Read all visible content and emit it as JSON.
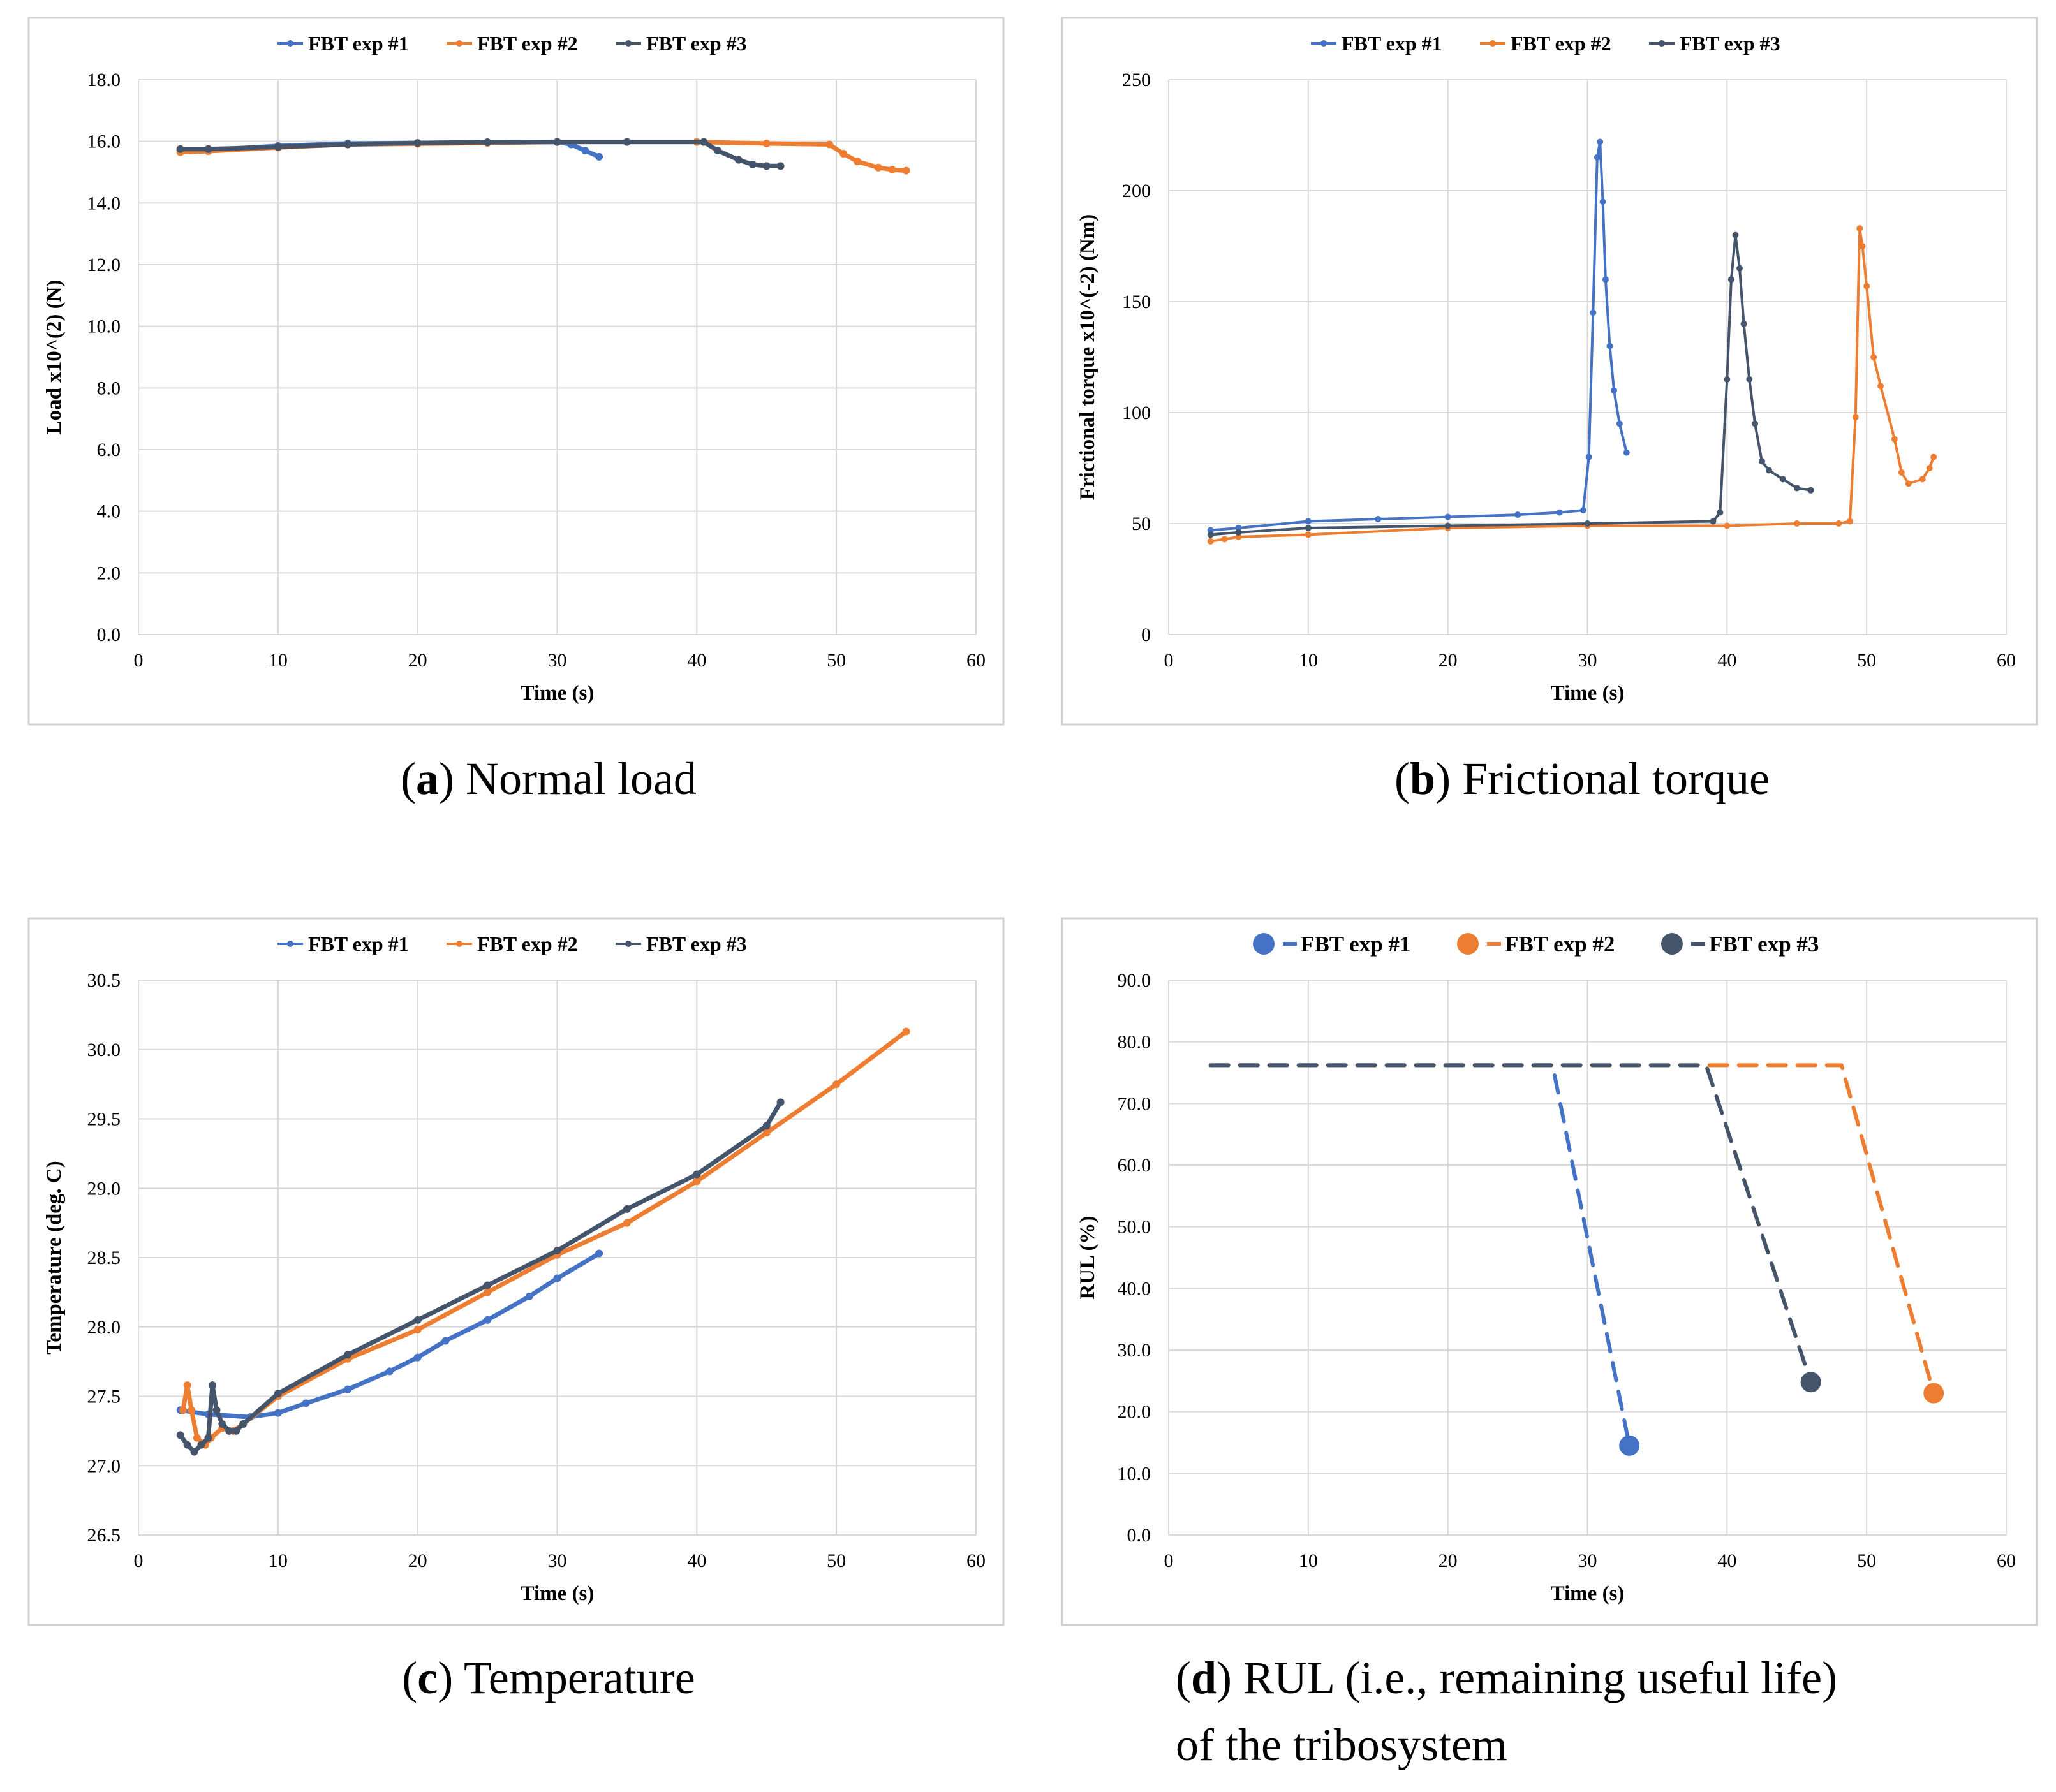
{
  "colors": {
    "exp1": "#4472C4",
    "exp2": "#ED7D31",
    "exp3": "#44546A"
  },
  "legend": [
    "FBT exp #1",
    "FBT exp #2",
    "FBT exp #3"
  ],
  "captions": {
    "a": {
      "letter": "a",
      "text": "Normal load"
    },
    "b": {
      "letter": "b",
      "text": "Frictional torque"
    },
    "c": {
      "letter": "c",
      "text": "Temperature"
    },
    "d": {
      "letter": "d",
      "text": "RUL (i.e., remaining useful life)",
      "text2": "of the tribosystem"
    }
  },
  "chart_data": [
    {
      "id": "a",
      "type": "line",
      "xlabel": "Time (s)",
      "ylabel": "Load x10^(2) (N)",
      "xlim": [
        0,
        60
      ],
      "ylim": [
        0,
        18
      ],
      "xticks": [
        "0",
        "10",
        "20",
        "30",
        "40",
        "50",
        "60"
      ],
      "yticks": [
        "0.0",
        "2.0",
        "4.0",
        "6.0",
        "8.0",
        "10.0",
        "12.0",
        "14.0",
        "16.0",
        "18.0"
      ],
      "grid": true,
      "legend_position": "top",
      "series": [
        {
          "name": "FBT exp #1",
          "x": [
            3,
            5,
            10,
            15,
            20,
            25,
            30,
            31,
            32,
            33
          ],
          "y": [
            15.7,
            15.72,
            15.85,
            15.93,
            15.95,
            15.97,
            15.98,
            15.9,
            15.7,
            15.5
          ]
        },
        {
          "name": "FBT exp #2",
          "x": [
            3,
            5,
            10,
            15,
            20,
            25,
            30,
            35,
            40,
            45,
            49.5,
            50.5,
            51.5,
            53,
            54,
            55
          ],
          "y": [
            15.65,
            15.68,
            15.8,
            15.9,
            15.92,
            15.95,
            15.98,
            15.98,
            15.98,
            15.93,
            15.9,
            15.6,
            15.35,
            15.15,
            15.08,
            15.05
          ]
        },
        {
          "name": "FBT exp #3",
          "x": [
            3,
            5,
            10,
            15,
            20,
            25,
            30,
            35,
            40.5,
            41.5,
            43,
            44,
            45,
            46
          ],
          "y": [
            15.75,
            15.75,
            15.82,
            15.9,
            15.95,
            15.97,
            15.98,
            15.98,
            15.98,
            15.7,
            15.4,
            15.25,
            15.2,
            15.2
          ]
        }
      ]
    },
    {
      "id": "b",
      "type": "line",
      "xlabel": "Time (s)",
      "ylabel": "Frictional torque x10^(-2) (Nm)",
      "xlim": [
        0,
        60
      ],
      "ylim": [
        0,
        250
      ],
      "xticks": [
        "0",
        "10",
        "20",
        "30",
        "40",
        "50",
        "60"
      ],
      "yticks": [
        "0",
        "50",
        "100",
        "150",
        "200",
        "250"
      ],
      "grid": true,
      "legend_position": "top",
      "series": [
        {
          "name": "FBT exp #1",
          "x": [
            3,
            5,
            10,
            15,
            20,
            25,
            28,
            29.7,
            30.1,
            30.4,
            30.7,
            30.9,
            31.1,
            31.3,
            31.6,
            31.9,
            32.3,
            32.8
          ],
          "y": [
            47,
            48,
            51,
            52,
            53,
            54,
            55,
            56,
            80,
            145,
            215,
            222,
            195,
            160,
            130,
            110,
            95,
            82
          ]
        },
        {
          "name": "FBT exp #2",
          "x": [
            3,
            4,
            5,
            10,
            20,
            30,
            40,
            45,
            48,
            48.8,
            49.2,
            49.5,
            49.7,
            50.0,
            50.5,
            51,
            52,
            52.5,
            53,
            54,
            54.5,
            54.8
          ],
          "y": [
            42,
            43,
            44,
            45,
            48,
            49,
            49,
            50,
            50,
            51,
            98,
            183,
            175,
            157,
            125,
            112,
            88,
            73,
            68,
            70,
            75,
            80
          ]
        },
        {
          "name": "FBT exp #3",
          "x": [
            3,
            5,
            10,
            20,
            30,
            39,
            39.5,
            40.0,
            40.3,
            40.6,
            40.9,
            41.2,
            41.6,
            42,
            42.5,
            43,
            44,
            45,
            46
          ],
          "y": [
            45,
            46,
            48,
            49,
            50,
            51,
            55,
            115,
            160,
            180,
            165,
            140,
            115,
            95,
            78,
            74,
            70,
            66,
            65
          ]
        }
      ]
    },
    {
      "id": "c",
      "type": "line",
      "xlabel": "Time (s)",
      "ylabel": "Temperature (deg. C)",
      "xlim": [
        0,
        60
      ],
      "ylim": [
        26.5,
        30.5
      ],
      "xticks": [
        "0",
        "10",
        "20",
        "30",
        "40",
        "50",
        "60"
      ],
      "yticks": [
        "26.5",
        "27.0",
        "27.5",
        "28.0",
        "28.5",
        "29.0",
        "29.5",
        "30.0",
        "30.5"
      ],
      "grid": true,
      "legend_position": "top",
      "series": [
        {
          "name": "FBT exp #1",
          "x": [
            3,
            5,
            8,
            10,
            12,
            15,
            18,
            20,
            22,
            25,
            28,
            30,
            33
          ],
          "y": [
            27.4,
            27.37,
            27.35,
            27.38,
            27.45,
            27.55,
            27.68,
            27.78,
            27.9,
            28.05,
            28.22,
            28.35,
            28.53
          ]
        },
        {
          "name": "FBT exp #2",
          "x": [
            3.2,
            3.5,
            3.8,
            4.2,
            4.8,
            5.2,
            6.0,
            6.8,
            7.5,
            10,
            15,
            20,
            25,
            30,
            35,
            40,
            45,
            50,
            55
          ],
          "y": [
            27.4,
            27.58,
            27.4,
            27.2,
            27.15,
            27.2,
            27.27,
            27.25,
            27.3,
            27.5,
            27.77,
            27.98,
            28.25,
            28.52,
            28.75,
            29.05,
            29.4,
            29.75,
            30.13
          ]
        },
        {
          "name": "FBT exp #3",
          "x": [
            3.0,
            3.5,
            4.0,
            4.5,
            5.0,
            5.3,
            5.6,
            6.0,
            6.5,
            7.0,
            7.5,
            10,
            15,
            20,
            25,
            30,
            35,
            40,
            45,
            46
          ],
          "y": [
            27.22,
            27.15,
            27.1,
            27.15,
            27.2,
            27.58,
            27.4,
            27.3,
            27.25,
            27.25,
            27.3,
            27.52,
            27.8,
            28.05,
            28.3,
            28.55,
            28.85,
            29.1,
            29.45,
            29.62
          ]
        }
      ]
    },
    {
      "id": "d",
      "type": "line",
      "xlabel": "Time (s)",
      "ylabel": "RUL (%)",
      "xlim": [
        0,
        60
      ],
      "ylim": [
        0,
        90
      ],
      "xticks": [
        "0",
        "10",
        "20",
        "30",
        "40",
        "50",
        "60"
      ],
      "yticks": [
        "0.0",
        "10.0",
        "20.0",
        "30.0",
        "40.0",
        "50.0",
        "60.0",
        "70.0",
        "80.0",
        "90.0"
      ],
      "grid": true,
      "legend_position": "top",
      "series": [
        {
          "name": "FBT exp #1",
          "x": [
            3,
            27.5,
            33
          ],
          "y": [
            76.2,
            76.2,
            14.5
          ],
          "end_marker": true
        },
        {
          "name": "FBT exp #2",
          "x": [
            3,
            48.2,
            54.8
          ],
          "y": [
            76.2,
            76.2,
            23.0
          ],
          "end_marker": true
        },
        {
          "name": "FBT exp #3",
          "x": [
            3,
            38.5,
            46
          ],
          "y": [
            76.2,
            76.2,
            24.8
          ],
          "end_marker": true
        }
      ]
    }
  ]
}
